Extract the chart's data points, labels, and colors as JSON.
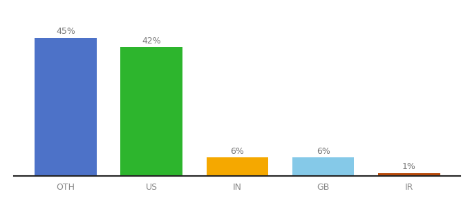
{
  "categories": [
    "OTH",
    "US",
    "IN",
    "GB",
    "IR"
  ],
  "values": [
    45,
    42,
    6,
    6,
    1
  ],
  "bar_colors": [
    "#4d72c8",
    "#2db52d",
    "#f5a800",
    "#85c9e8",
    "#b84a0a"
  ],
  "labels": [
    "45%",
    "42%",
    "6%",
    "6%",
    "1%"
  ],
  "ylim": [
    0,
    52
  ],
  "background_color": "#ffffff",
  "label_fontsize": 9,
  "tick_fontsize": 9,
  "bar_width": 0.72,
  "label_color": "#777777",
  "tick_color": "#888888",
  "bottom_spine_color": "#222222"
}
